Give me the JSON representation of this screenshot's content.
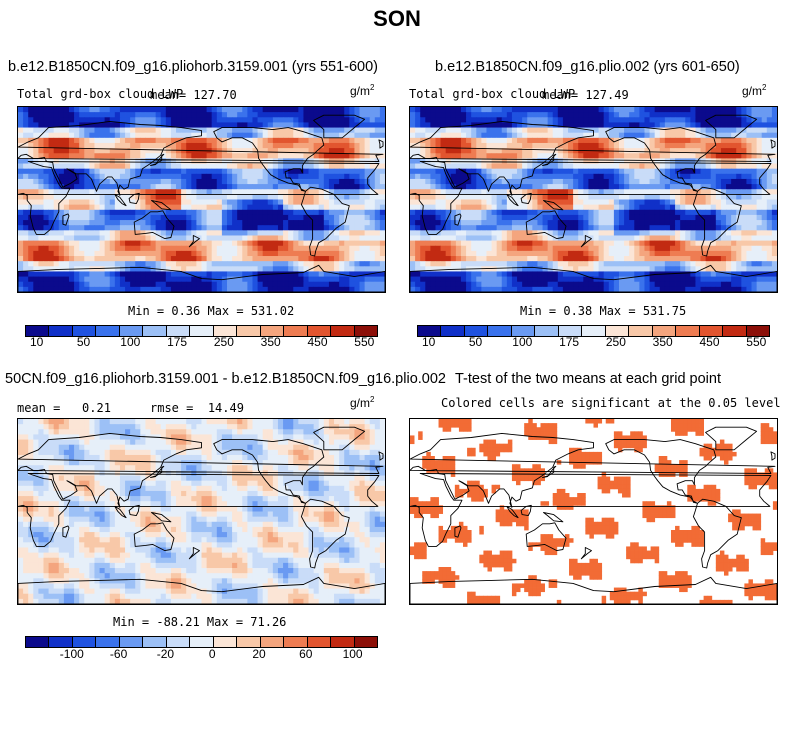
{
  "title": "SON",
  "panels": [
    {
      "title": "b.e12.B1850CN.f09_g16.pliohorb.3159.001 (yrs 551-600)",
      "variable": "Total grd-box cloud LWP",
      "mean_label": "mean=",
      "mean": "127.70",
      "units": "g/m",
      "units_exp": "2",
      "stats": "Min =   0.36 Max = 531.02",
      "colorbar": {
        "colors": [
          "#0b0a8c",
          "#1030c8",
          "#1f52e0",
          "#3a72ec",
          "#6a9af2",
          "#9cc0f6",
          "#c9dcf8",
          "#e6eff9",
          "#fbe5d6",
          "#f8c8a8",
          "#f4a57e",
          "#ee7c52",
          "#e2552f",
          "#c22a12",
          "#8c0f08"
        ],
        "ticks": [
          "10",
          "50",
          "100",
          "175",
          "250",
          "350",
          "450",
          "550"
        ]
      }
    },
    {
      "title": "b.e12.B1850CN.f09_g16.plio.002 (yrs 601-650)",
      "variable": "Total grd-box cloud LWP",
      "mean_label": "mean=",
      "mean": "127.49",
      "units": "g/m",
      "units_exp": "2",
      "stats": "Min =   0.38 Max = 531.75",
      "colorbar": {
        "colors": [
          "#0b0a8c",
          "#1030c8",
          "#1f52e0",
          "#3a72ec",
          "#6a9af2",
          "#9cc0f6",
          "#c9dcf8",
          "#e6eff9",
          "#fbe5d6",
          "#f8c8a8",
          "#f4a57e",
          "#ee7c52",
          "#e2552f",
          "#c22a12",
          "#8c0f08"
        ],
        "ticks": [
          "10",
          "50",
          "100",
          "175",
          "250",
          "350",
          "450",
          "550"
        ]
      }
    },
    {
      "title": "50CN.f09_g16.pliohorb.3159.001 - b.e12.B1850CN.f09_g16.plio.002",
      "mean_label": "mean =",
      "mean": "0.21",
      "rmse_label": "rmse =",
      "rmse": "14.49",
      "units": "g/m",
      "units_exp": "2",
      "stats": "Min = -88.21 Max =  71.26",
      "colorbar": {
        "colors": [
          "#0b0a8c",
          "#1030c8",
          "#1f52e0",
          "#3a72ec",
          "#6a9af2",
          "#9cc0f6",
          "#c9dcf8",
          "#e6eff9",
          "#fbe5d6",
          "#f8c8a8",
          "#f4a57e",
          "#ee7c52",
          "#e2552f",
          "#c22a12",
          "#8c0f08"
        ],
        "ticks": [
          "-100",
          "-60",
          "-20",
          "0",
          "20",
          "60",
          "100"
        ]
      }
    },
    {
      "title": "T-test of the two means at each grid point",
      "subtitle": "Colored cells are significant at the 0.05 level",
      "fill_color": "#f26b35"
    }
  ]
}
